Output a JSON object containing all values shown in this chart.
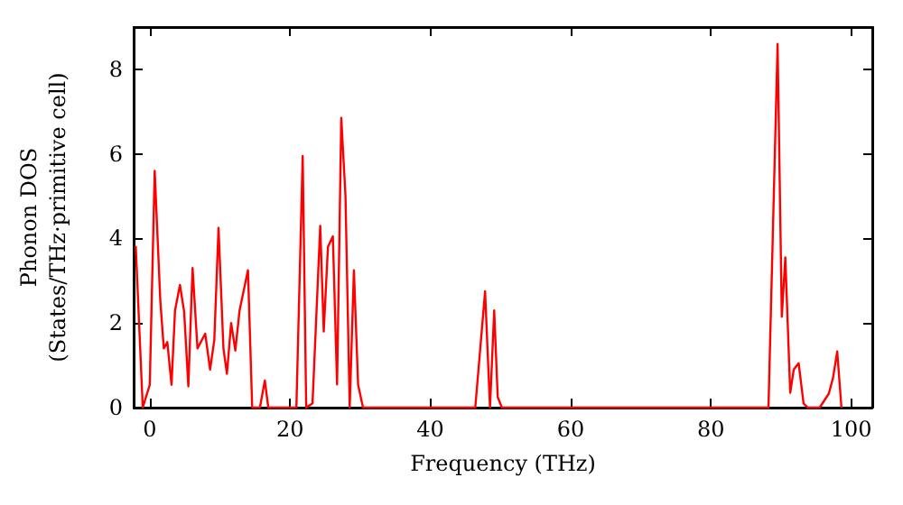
{
  "chart_data": {
    "type": "line",
    "xlabel": "Frequency (THz)",
    "ylabel": "Phonon DOS\n(States/THz·primitive cell)",
    "xlim": [
      -2.3,
      103
    ],
    "ylim": [
      0,
      9
    ],
    "xticks": [
      0,
      20,
      40,
      60,
      80,
      100
    ],
    "yticks": [
      0,
      2,
      4,
      6,
      8
    ],
    "grid": false,
    "marker": "none",
    "line_style": "solid",
    "series": [
      {
        "color": "#ff0000",
        "x": [
          -2.0,
          -1.0,
          0,
          0.7,
          1.5,
          2.0,
          2.5,
          3.1,
          3.6,
          4.3,
          4.9,
          5.5,
          6.1,
          6.8,
          7.9,
          8.6,
          9.2,
          9.8,
          10.5,
          11.0,
          11.6,
          12.2,
          12.8,
          14.0,
          14.6,
          15.7,
          16.4,
          16.9,
          20.9,
          21.8,
          22.3,
          23.2,
          24.3,
          24.8,
          25.4,
          26.1,
          26.7,
          27.3,
          27.9,
          28.5,
          29.1,
          29.7,
          30.4,
          46.4,
          47.8,
          48.5,
          49.1,
          49.6,
          50.2,
          88.2,
          89.5,
          90.1,
          90.6,
          91.3,
          91.8,
          92.5,
          93.2,
          93.8,
          95.5,
          96.8,
          97.4,
          98.0,
          98.6
        ],
        "values": [
          3.82,
          0,
          0.54,
          5.6,
          2.53,
          1.4,
          1.55,
          0.54,
          2.3,
          2.9,
          2.27,
          0.5,
          3.3,
          1.4,
          1.75,
          0.9,
          1.6,
          4.25,
          1.4,
          0.8,
          2.0,
          1.35,
          2.3,
          3.25,
          0,
          0,
          0.64,
          0,
          0,
          5.95,
          0,
          0.1,
          4.3,
          1.8,
          3.8,
          4.05,
          0.55,
          6.85,
          5.0,
          0,
          3.25,
          0.54,
          0,
          0,
          2.75,
          0,
          2.3,
          0.25,
          0,
          0,
          8.6,
          2.15,
          3.55,
          0.35,
          0.9,
          1.05,
          0.1,
          0,
          0,
          0.33,
          0.7,
          1.33,
          0
        ]
      }
    ]
  }
}
